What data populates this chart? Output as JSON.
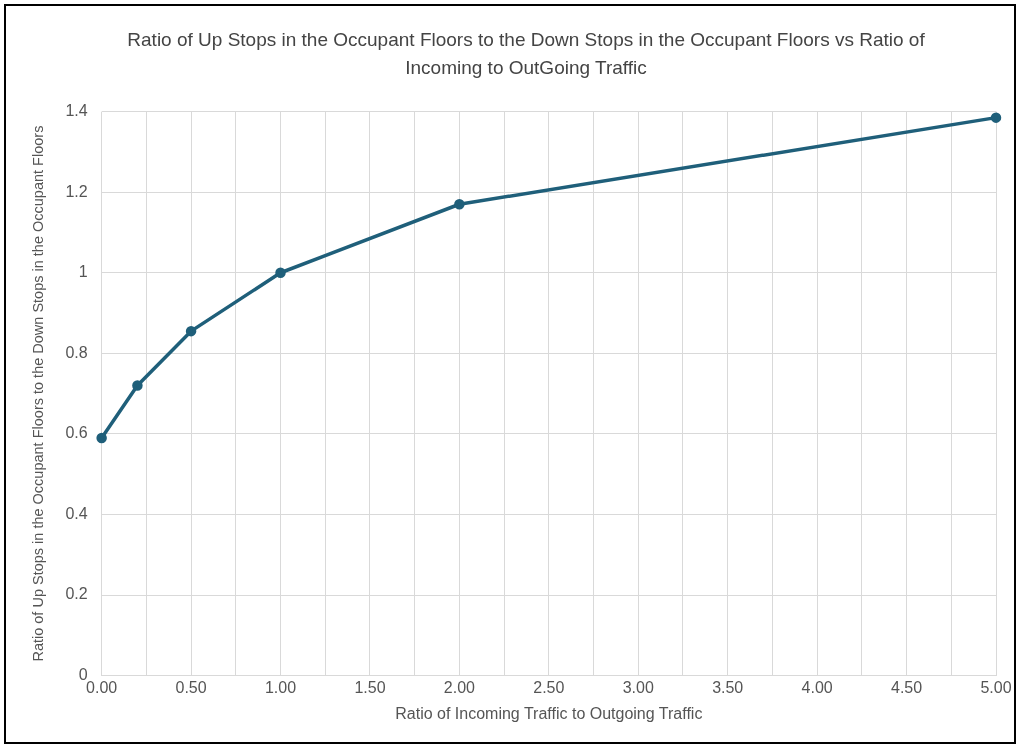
{
  "chart_data": {
    "type": "line",
    "title": "Ratio of Up Stops in the Occupant  Floors to the Down Stops in the Occupant Floors vs Ratio of Incoming to OutGoing Traffic",
    "xlabel": "Ratio of Incoming Traffic to Outgoing Traffic",
    "ylabel": "Ratio of Up Stops in the Occupant Floors to the Down Stops in the Occupant Floors",
    "series": [
      {
        "color": "#1f5f7a",
        "x": [
          0,
          0.2,
          0.5,
          1,
          2,
          5
        ],
        "values": [
          0.59,
          0.72,
          0.855,
          1.0,
          1.17,
          1.385
        ]
      }
    ],
    "xlim": [
      0,
      5
    ],
    "xticks": [
      {
        "value": 0,
        "label": "0.00"
      },
      {
        "value": 0.25,
        "label": null
      },
      {
        "value": 0.5,
        "label": "0.50"
      },
      {
        "value": 0.75,
        "label": null
      },
      {
        "value": 1,
        "label": "1.00"
      },
      {
        "value": 1.25,
        "label": null
      },
      {
        "value": 1.5,
        "label": "1.50"
      },
      {
        "value": 1.75,
        "label": null
      },
      {
        "value": 2,
        "label": "2.00"
      },
      {
        "value": 2.25,
        "label": null
      },
      {
        "value": 2.5,
        "label": "2.50"
      },
      {
        "value": 2.75,
        "label": null
      },
      {
        "value": 3,
        "label": "3.00"
      },
      {
        "value": 3.25,
        "label": null
      },
      {
        "value": 3.5,
        "label": "3.50"
      },
      {
        "value": 3.75,
        "label": null
      },
      {
        "value": 4,
        "label": "4.00"
      },
      {
        "value": 4.25,
        "label": null
      },
      {
        "value": 4.5,
        "label": "4.50"
      },
      {
        "value": 4.75,
        "label": null
      },
      {
        "value": 5,
        "label": "5.00"
      }
    ],
    "ylim": [
      0,
      1.4
    ],
    "yticks": [
      0,
      0.2,
      0.4,
      0.6,
      0.8,
      1,
      1.2,
      1.4
    ],
    "grid": true,
    "marker": "circle",
    "line_style": "solid",
    "legend": false
  }
}
